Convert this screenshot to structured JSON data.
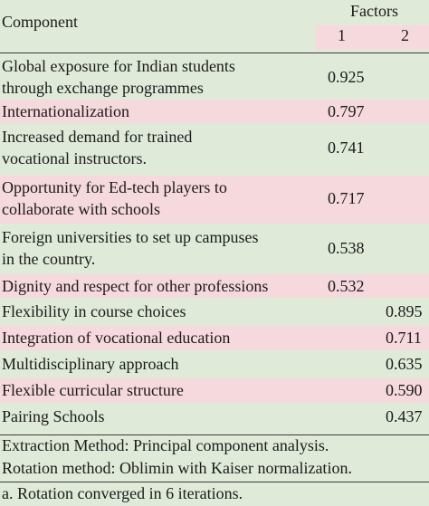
{
  "header": {
    "component_label": "Component",
    "factors_label": "Factors",
    "factor1": "1",
    "factor2": "2"
  },
  "rows": [
    {
      "lines": [
        "Global exposure for Indian students",
        "through exchange programmes"
      ],
      "f1": "0.925",
      "f2": ""
    },
    {
      "lines": [
        "Internationalization"
      ],
      "f1": "0.797",
      "f2": ""
    },
    {
      "lines": [
        "Increased demand for trained",
        "vocational instructors."
      ],
      "f1": "0.741",
      "f2": ""
    },
    {
      "lines": [
        "Opportunity for Ed-tech players to",
        "collaborate with schools"
      ],
      "f1": "0.717",
      "f2": ""
    },
    {
      "lines": [
        "Foreign universities to set up campuses",
        "in the country."
      ],
      "f1": "0.538",
      "f2": ""
    },
    {
      "lines": [
        "Dignity and respect for other professions"
      ],
      "f1": "0.532",
      "f2": ""
    },
    {
      "lines": [
        "Flexibility in course choices"
      ],
      "f1": "",
      "f2": "0.895"
    },
    {
      "lines": [
        "Integration of vocational education"
      ],
      "f1": "",
      "f2": "0.711"
    },
    {
      "lines": [
        "Multidisciplinary approach"
      ],
      "f1": "",
      "f2": "0.635"
    },
    {
      "lines": [
        "Flexible curricular structure"
      ],
      "f1": "",
      "f2": "0.590"
    },
    {
      "lines": [
        "Pairing Schools"
      ],
      "f1": "",
      "f2": "0.437"
    }
  ],
  "footnotes": [
    "Extraction Method: Principal component analysis.",
    "Rotation method: Oblimin with Kaiser normalization.",
    "a. Rotation converged in 6 iterations."
  ]
}
